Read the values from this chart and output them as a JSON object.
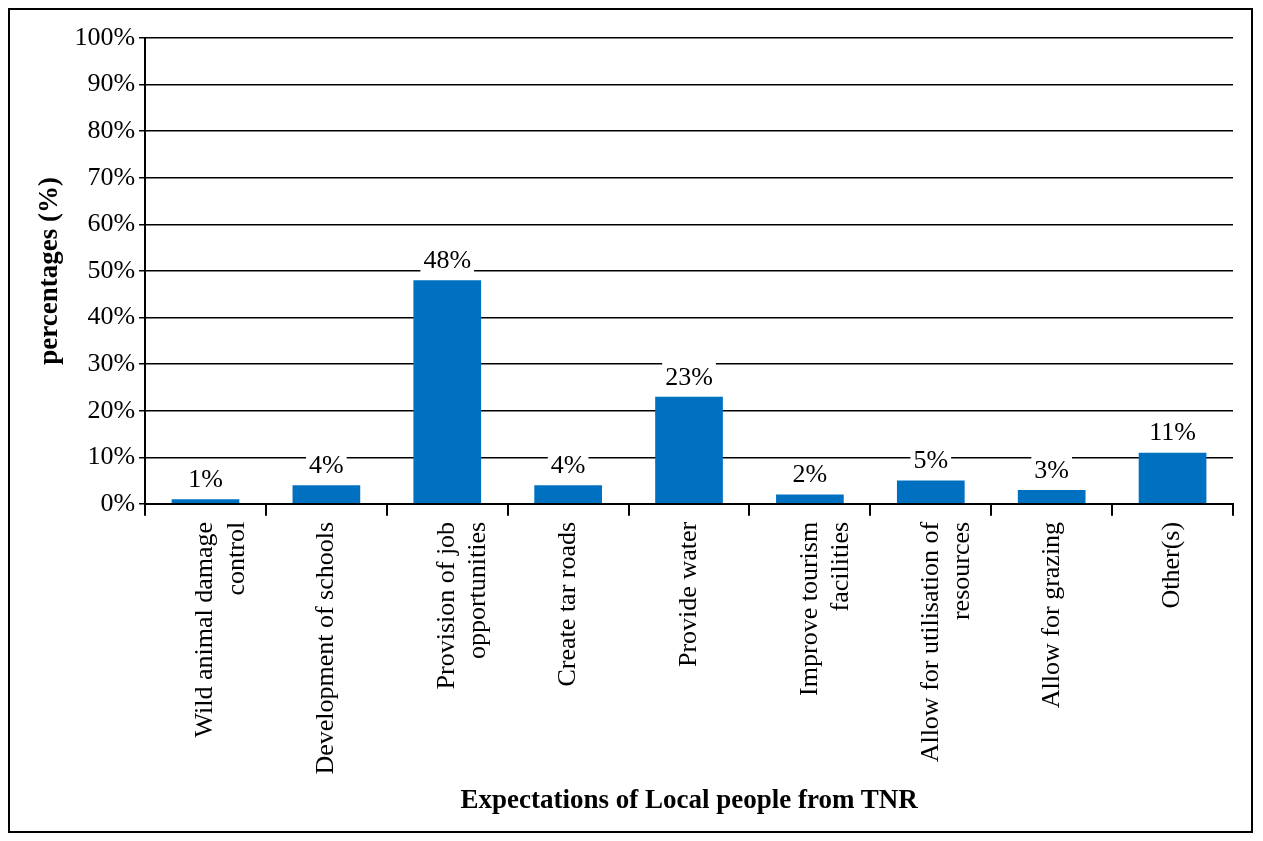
{
  "chart_data": {
    "type": "bar",
    "xlabel": "Expectations of Local people from TNR",
    "ylabel": "percentages (%)",
    "categories": [
      "Wild animal damage control",
      "Development of schools",
      "Provision of job opportunities",
      "Create tar roads",
      "Provide water",
      "Improve tourism facilities",
      "Allow for utilisation of resources",
      "Allow for grazing",
      "Other(s)"
    ],
    "values": [
      1,
      4,
      48,
      4,
      23,
      2,
      5,
      3,
      11
    ],
    "color": "#0070c0",
    "value_labels": [
      "1%",
      "4%",
      "48%",
      "4%",
      "23%",
      "2%",
      "5%",
      "3%",
      "11%"
    ],
    "ylim": [
      0,
      100
    ],
    "yticks": [
      {
        "value": 0,
        "label": "0%"
      },
      {
        "value": 10,
        "label": "10%"
      },
      {
        "value": 20,
        "label": "20%"
      },
      {
        "value": 30,
        "label": "30%"
      },
      {
        "value": 40,
        "label": "40%"
      },
      {
        "value": 50,
        "label": "50%"
      },
      {
        "value": 60,
        "label": "60%"
      },
      {
        "value": 70,
        "label": "70%"
      },
      {
        "value": 80,
        "label": "80%"
      },
      {
        "value": 90,
        "label": "90%"
      },
      {
        "value": 100,
        "label": "100%"
      }
    ],
    "grid": "y",
    "legend": false
  }
}
